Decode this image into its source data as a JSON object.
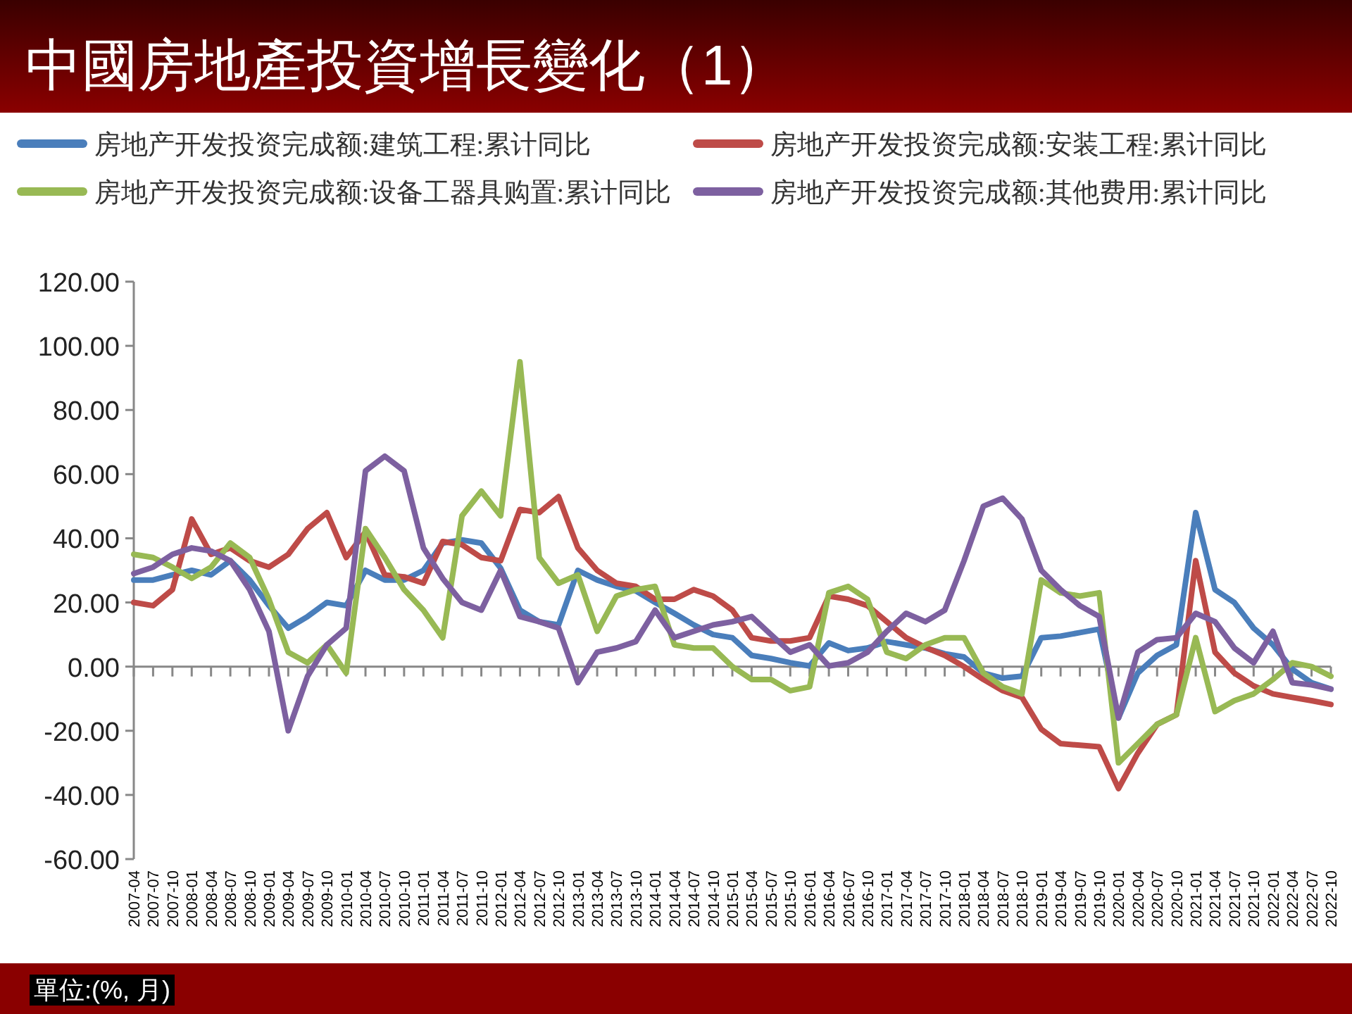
{
  "chart_data": {
    "type": "line",
    "title": "中國房地產投資增長變化（1）",
    "annotations": [
      "單位:(%, 月)"
    ],
    "categories": [
      "2007-04",
      "2007-07",
      "2007-10",
      "2008-01",
      "2008-04",
      "2008-07",
      "2008-10",
      "2009-01",
      "2009-04",
      "2009-07",
      "2009-10",
      "2010-01",
      "2010-04",
      "2010-07",
      "2010-10",
      "2011-01",
      "2011-04",
      "2011-07",
      "2011-10",
      "2012-01",
      "2012-04",
      "2012-07",
      "2012-10",
      "2013-01",
      "2013-04",
      "2013-07",
      "2013-10",
      "2014-01",
      "2014-04",
      "2014-07",
      "2014-10",
      "2015-01",
      "2015-04",
      "2015-07",
      "2015-10",
      "2016-01",
      "2016-04",
      "2016-07",
      "2016-10",
      "2017-01",
      "2017-04",
      "2017-07",
      "2017-10",
      "2018-01",
      "2018-04",
      "2018-07",
      "2018-10",
      "2019-01",
      "2019-04",
      "2019-07",
      "2019-10",
      "2020-01",
      "2020-04",
      "2020-07",
      "2020-10",
      "2021-01",
      "2021-04",
      "2021-07",
      "2021-10",
      "2022-01",
      "2022-04",
      "2022-07",
      "2022-10"
    ],
    "series": [
      {
        "name": "房地产开发投资完成额:建筑工程:累计同比",
        "color": "#4a7ebb",
        "values": [
          27,
          27,
          28.6,
          30,
          28.6,
          33,
          27,
          19,
          12,
          15.6,
          20,
          19,
          30,
          27,
          27,
          30,
          38.5,
          39.5,
          38.5,
          30.7,
          17.6,
          14,
          13,
          30,
          27,
          25,
          23.6,
          20,
          16.6,
          13,
          10,
          9,
          3.5,
          2.5,
          1.2,
          0.2,
          7.4,
          5,
          5.8,
          7.8,
          6.8,
          5.8,
          4,
          3,
          -2,
          -3.6,
          -3,
          9,
          9.5,
          10.6,
          11.7,
          -16,
          -2,
          3.5,
          6.8,
          48,
          24,
          20,
          12,
          6.8,
          -0.8,
          -5,
          -7
        ]
      },
      {
        "name": "房地产开发投资完成额:安装工程:累计同比",
        "color": "#be4b48",
        "values": [
          20,
          19,
          24,
          46,
          35,
          37,
          33,
          31,
          35,
          43,
          48,
          34,
          42,
          28.6,
          28,
          26,
          39,
          38,
          34,
          33,
          49,
          48,
          53,
          37,
          30,
          26,
          25,
          21,
          21,
          24,
          22,
          17.6,
          9,
          8,
          8,
          9,
          22,
          21,
          19,
          14,
          9,
          6,
          3.5,
          0,
          -4,
          -7.5,
          -9.6,
          -19.5,
          -24,
          -24.5,
          -25,
          -38,
          -27,
          -18,
          -15,
          33,
          4.5,
          -2,
          -6,
          -8.5,
          -9.6,
          -10.6,
          -11.8
        ]
      },
      {
        "name": "房地产开发投资完成额:设备工器具购置:累计同比",
        "color": "#98b954",
        "values": [
          35,
          34,
          31,
          27.5,
          31,
          38.5,
          34,
          21,
          4.5,
          1.2,
          6.8,
          -2,
          43,
          34,
          24,
          17.6,
          9,
          47,
          54.7,
          47,
          95,
          34,
          26,
          28.6,
          11,
          22,
          24,
          25,
          6.8,
          5.8,
          5.8,
          0,
          -4,
          -4,
          -7.5,
          -6.3,
          23,
          25,
          21,
          4.5,
          2.5,
          6.8,
          9,
          9,
          -2,
          -6.3,
          -8.5,
          27,
          23,
          22,
          23,
          -30,
          -24,
          -18,
          -15,
          9,
          -14,
          -10.6,
          -8.5,
          -4,
          1.2,
          0,
          -3
        ]
      },
      {
        "name": "房地产开发投资完成额:其他费用:累计同比",
        "color": "#7d60a0",
        "values": [
          29,
          31,
          35,
          37,
          36,
          33,
          24,
          11,
          -20,
          -3,
          6.8,
          12,
          61,
          65.6,
          61,
          37,
          27.5,
          20,
          17.6,
          30,
          15.6,
          14,
          12,
          -5,
          4.5,
          5.8,
          7.8,
          17.6,
          9,
          11,
          13,
          14,
          15.6,
          10,
          4.5,
          6.8,
          0.2,
          1.2,
          4.5,
          11,
          16.6,
          14,
          17.6,
          33,
          50,
          52.5,
          46,
          30,
          24,
          19,
          15.6,
          -16,
          4.5,
          8.4,
          9,
          16.6,
          14,
          5.8,
          1.2,
          11,
          -5,
          -5.7,
          -7
        ]
      }
    ],
    "ylim": [
      -60,
      120
    ],
    "yticks": [
      {
        "value": 120,
        "label": "120.00"
      },
      {
        "value": 100,
        "label": "100.00"
      },
      {
        "value": 80,
        "label": "80.00"
      },
      {
        "value": 60,
        "label": "60.00"
      },
      {
        "value": 40,
        "label": "40.00"
      },
      {
        "value": 20,
        "label": "20.00"
      },
      {
        "value": 0,
        "label": "0.00"
      },
      {
        "value": -20,
        "label": "-20.00"
      },
      {
        "value": -40,
        "label": "-40.00"
      },
      {
        "value": -60,
        "label": "-60.00"
      }
    ],
    "legend": "top"
  }
}
